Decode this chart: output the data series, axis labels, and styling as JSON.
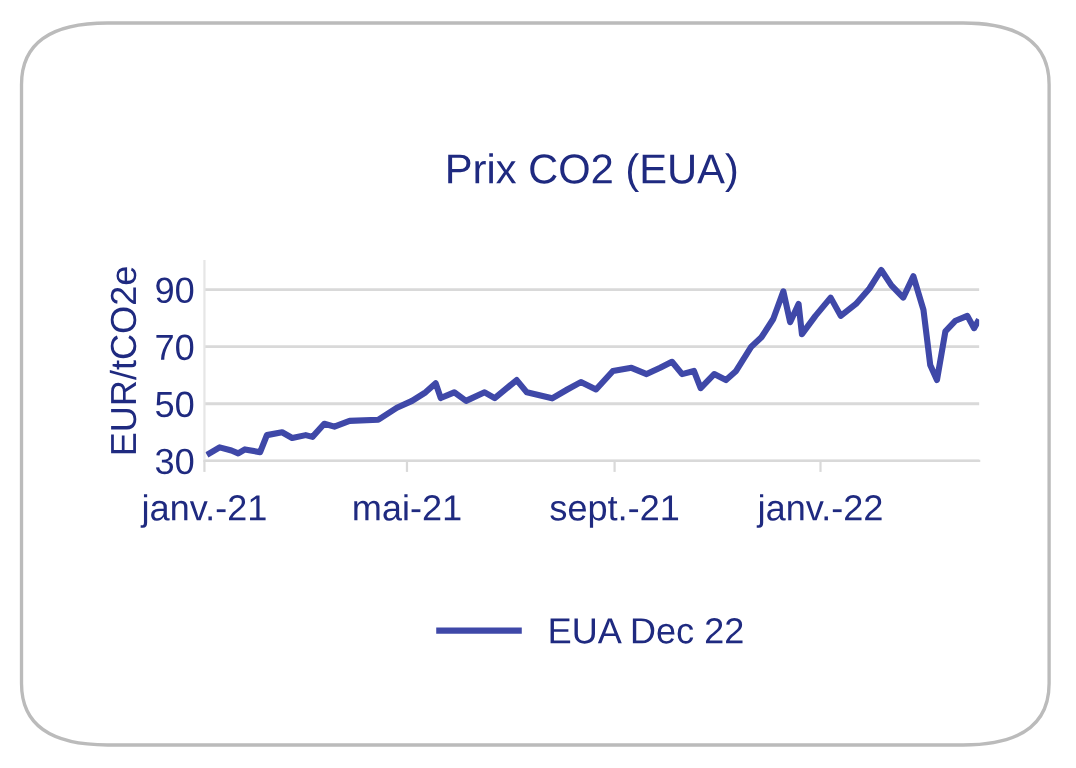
{
  "chart_data": {
    "type": "line",
    "title": "Prix CO2 (EUA)",
    "ylabel": "EUR/tCO2e",
    "xlim": [
      "2021-01-01",
      "2022-04-05"
    ],
    "xticks": [
      {
        "value": "2021-01-01",
        "label": "janv.-21"
      },
      {
        "value": "2021-05-01",
        "label": "mai-21"
      },
      {
        "value": "2021-09-01",
        "label": "sept.-21"
      },
      {
        "value": "2022-01-01",
        "label": "janv.-22"
      }
    ],
    "ylim": [
      30,
      100
    ],
    "yticks": [
      30,
      50,
      70,
      90
    ],
    "grid": "y",
    "legend": "bottom",
    "marker": "none",
    "line_style": "solid",
    "series": [
      {
        "name": "EUA Dec 22",
        "color": "#3f48a8",
        "x": [
          "2021-01-04",
          "2021-01-10",
          "2021-01-17",
          "2021-01-21",
          "2021-01-25",
          "2021-02-03",
          "2021-02-07",
          "2021-02-16",
          "2021-02-22",
          "2021-03-02",
          "2021-03-06",
          "2021-03-13",
          "2021-03-19",
          "2021-03-28",
          "2021-04-14",
          "2021-04-25",
          "2021-05-04",
          "2021-05-12",
          "2021-05-18",
          "2021-05-21",
          "2021-05-29",
          "2021-06-05",
          "2021-06-16",
          "2021-06-22",
          "2021-07-05",
          "2021-07-11",
          "2021-07-26",
          "2021-08-04",
          "2021-08-12",
          "2021-08-21",
          "2021-08-31",
          "2021-09-11",
          "2021-09-20",
          "2021-09-28",
          "2021-10-05",
          "2021-10-11",
          "2021-10-18",
          "2021-10-22",
          "2021-10-30",
          "2021-11-06",
          "2021-11-12",
          "2021-11-21",
          "2021-11-27",
          "2021-12-04",
          "2021-12-10",
          "2021-12-14",
          "2021-12-19",
          "2021-12-21",
          "2021-12-29",
          "2022-01-07",
          "2022-01-13",
          "2022-01-22",
          "2022-01-30",
          "2022-02-06",
          "2022-02-12",
          "2022-02-19",
          "2022-02-25",
          "2022-03-03",
          "2022-03-07",
          "2022-03-11",
          "2022-03-16",
          "2022-03-22",
          "2022-03-29",
          "2022-04-02",
          "2022-04-04"
        ],
        "values": [
          32.6,
          34.7,
          33.6,
          32.6,
          34,
          33,
          39,
          40,
          38,
          39,
          38.4,
          43,
          42,
          44,
          44.4,
          48.6,
          51,
          54,
          57.2,
          52,
          54,
          51,
          54,
          52,
          58.3,
          54,
          51.9,
          55,
          57.6,
          55,
          61.5,
          62.6,
          60.4,
          62.6,
          64.7,
          60.4,
          61.5,
          55.5,
          60.4,
          58.3,
          61.5,
          70,
          73.3,
          79.7,
          89.4,
          78.6,
          85,
          74.4,
          80.8,
          87.2,
          80.8,
          85,
          90.4,
          96.9,
          91.5,
          87.2,
          94.7,
          82.9,
          63.6,
          58.3,
          75.4,
          79.1,
          80.8,
          76.5,
          78.6
        ]
      }
    ]
  }
}
